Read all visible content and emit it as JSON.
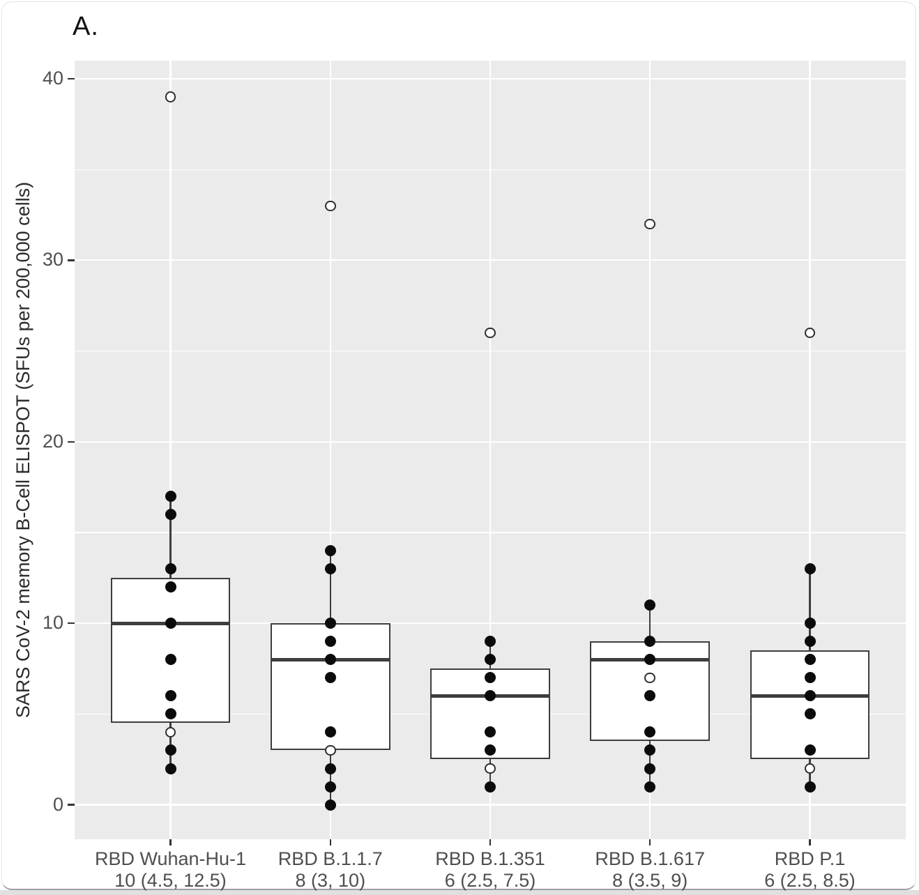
{
  "figure": {
    "panel_label": "A."
  },
  "chart_data": {
    "type": "boxplot",
    "title": "A.",
    "ylabel": "SARS CoV-2 memory B-Cell ELISPOT (SFUs per 200,000 cells)",
    "xlabel": "",
    "ylim": [
      -1.9,
      41
    ],
    "yticks": [
      0,
      10,
      20,
      30,
      40
    ],
    "yticks_minor": [
      5,
      15,
      25,
      35
    ],
    "grid": {
      "horizontal_major": true,
      "horizontal_minor": true,
      "vertical_major_at_categories": true
    },
    "legend": "none",
    "groups": [
      {
        "category": "RBD Wuhan-Hu-1",
        "sublabel": "10 (4.5, 12.5)",
        "median": 10,
        "q1": 4.5,
        "q3": 12.5,
        "whisker_low": 2,
        "whisker_high": 17,
        "points_filled": [
          17,
          16,
          13,
          12,
          10,
          8,
          6,
          5,
          3,
          2
        ],
        "points_open": [
          4
        ],
        "outliers_open": [
          39
        ]
      },
      {
        "category": "RBD B.1.1.7",
        "sublabel": "8 (3, 10)",
        "median": 8,
        "q1": 3,
        "q3": 10,
        "whisker_low": 0,
        "whisker_high": 14,
        "points_filled": [
          14,
          13,
          10,
          9,
          8,
          7,
          4,
          2,
          1,
          0
        ],
        "points_open": [
          3
        ],
        "outliers_open": [
          33
        ]
      },
      {
        "category": "RBD B.1.351",
        "sublabel": "6 (2.5, 7.5)",
        "median": 6,
        "q1": 2.5,
        "q3": 7.5,
        "whisker_low": 1,
        "whisker_high": 9,
        "points_filled": [
          9,
          8,
          7,
          6,
          4,
          3,
          1
        ],
        "points_open": [
          2
        ],
        "outliers_open": [
          26
        ]
      },
      {
        "category": "RBD B.1.617",
        "sublabel": "8 (3.5, 9)",
        "median": 8,
        "q1": 3.5,
        "q3": 9,
        "whisker_low": 1,
        "whisker_high": 11,
        "points_filled": [
          11,
          9,
          8,
          6,
          4,
          3,
          2,
          1
        ],
        "points_open": [
          7
        ],
        "outliers_open": [
          32
        ]
      },
      {
        "category": "RBD P.1",
        "sublabel": "6 (2.5, 8.5)",
        "median": 6,
        "q1": 2.5,
        "q3": 8.5,
        "whisker_low": 1,
        "whisker_high": 13,
        "points_filled": [
          13,
          10,
          9,
          8,
          7,
          6,
          5,
          3,
          1
        ],
        "points_open": [
          2
        ],
        "outliers_open": [
          26
        ]
      }
    ]
  },
  "style": {
    "panel_bg": "#ebebeb",
    "grid_color": "#ffffff",
    "box_fill": "#ffffff",
    "box_border": "#3d3d3d",
    "point_fill": "#0b0b0b",
    "open_point_border": "#2e2e2e",
    "open_point_fill": "#ffffff",
    "tick_color": "#333333",
    "tick_label_color": "#4f4f4f",
    "axis_title_color": "#2b2b2b",
    "figure_label_color": "#111111",
    "card_bg": "#ffffff",
    "card_border": "#e3e3e3",
    "card_bottom_border": "#9f9f9f",
    "page_strip": "#e0e0e0"
  }
}
